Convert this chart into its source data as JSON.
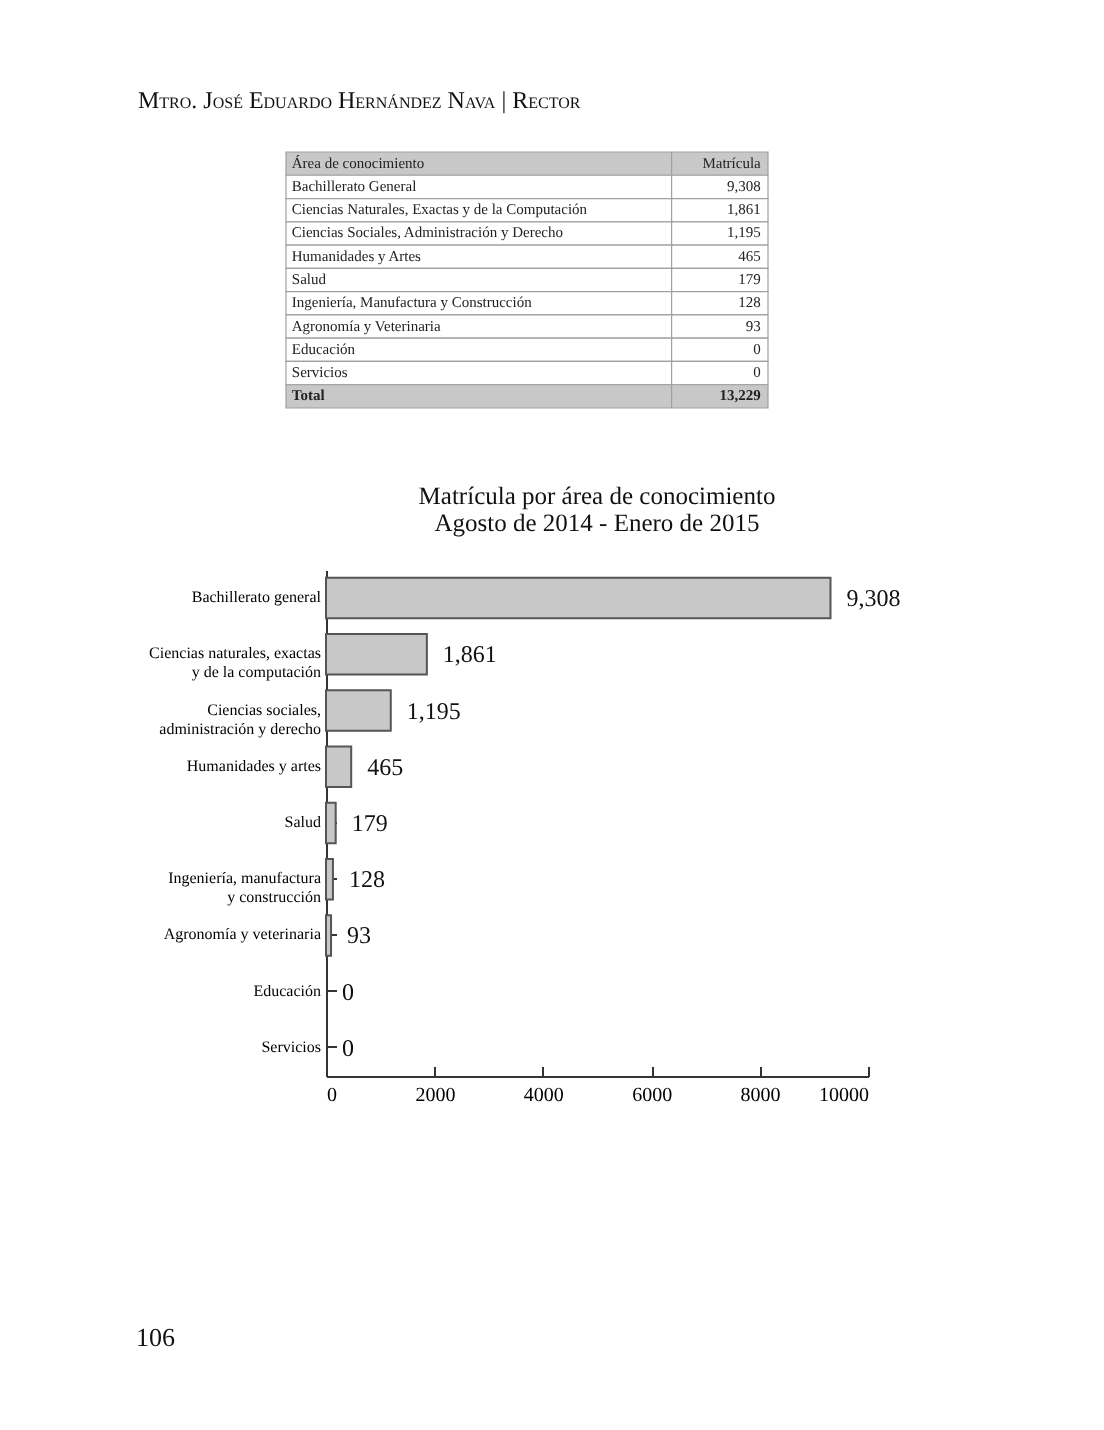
{
  "chart_data": [
    {
      "type": "other",
      "xlabel": "Área de conocimiento",
      "ylabel": "Matrícula",
      "categories": [
        "Bachillerato General",
        "Ciencias Naturales, Exactas y de la Computación",
        "Ciencias Sociales, Administración y Derecho",
        "Humanidades y Artes",
        "Salud",
        "Ingeniería, Manufactura y Construcción",
        "Agronomía y Veterinaria",
        "Educación",
        "Servicios",
        "Total"
      ],
      "values": [
        9308,
        1861,
        1195,
        465,
        179,
        128,
        93,
        0,
        0,
        13229
      ],
      "value_labels": [
        "9,308",
        "1,861",
        "1,195",
        "465",
        "179",
        "128",
        "93",
        "0",
        "0",
        "13,229"
      ],
      "annotations": [
        "Mtro. José Eduardo Hernández Nava | Rector"
      ]
    },
    {
      "type": "bar",
      "orientation": "horizontal",
      "title": "Matrícula por área de conocimiento",
      "subtitle": "Agosto de 2014 - Enero de 2015",
      "categories": [
        "Bachillerato general",
        "Ciencias naturales, exactas y de la computación",
        "Ciencias sociales, administración y derecho",
        "Humanidades y artes",
        "Salud",
        "Ingeniería, manufactura y construcción",
        "Agronomía y veterinaria",
        "Educación",
        "Servicios"
      ],
      "values": [
        9308,
        1861,
        1195,
        465,
        179,
        128,
        93,
        0,
        0
      ],
      "value_labels": [
        "9,308",
        "1,861",
        "1,195",
        "465",
        "179",
        "128",
        "93",
        "0",
        "0"
      ],
      "color": "#c8c8c8",
      "xlim": [
        0,
        10000
      ],
      "xticks": [
        0,
        2000,
        4000,
        6000,
        8000,
        10000
      ],
      "grid": false,
      "legend": false,
      "annotations": [
        "106"
      ]
    }
  ]
}
